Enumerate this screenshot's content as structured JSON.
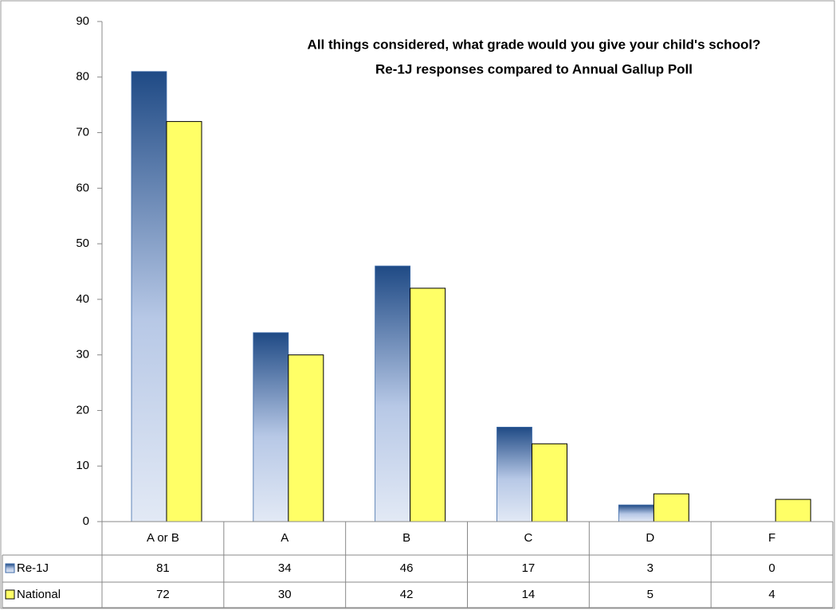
{
  "chart_data": {
    "type": "bar",
    "title": [
      "All things considered, what grade would you give your child's school?",
      "Re-1J responses compared to Annual Gallup Poll"
    ],
    "categories": [
      "A or B",
      "A",
      "B",
      "C",
      "D",
      "F"
    ],
    "series": [
      {
        "name": "Re-1J",
        "color": "#1f4a85",
        "values": [
          81,
          34,
          46,
          17,
          3,
          0
        ]
      },
      {
        "name": "National",
        "color": "#ffff66",
        "values": [
          72,
          30,
          42,
          14,
          5,
          4
        ]
      }
    ],
    "ylim": [
      0,
      90
    ],
    "yticks": [
      0,
      10,
      20,
      30,
      40,
      50,
      60,
      70,
      80,
      90
    ],
    "grid": false,
    "data_table": true
  }
}
